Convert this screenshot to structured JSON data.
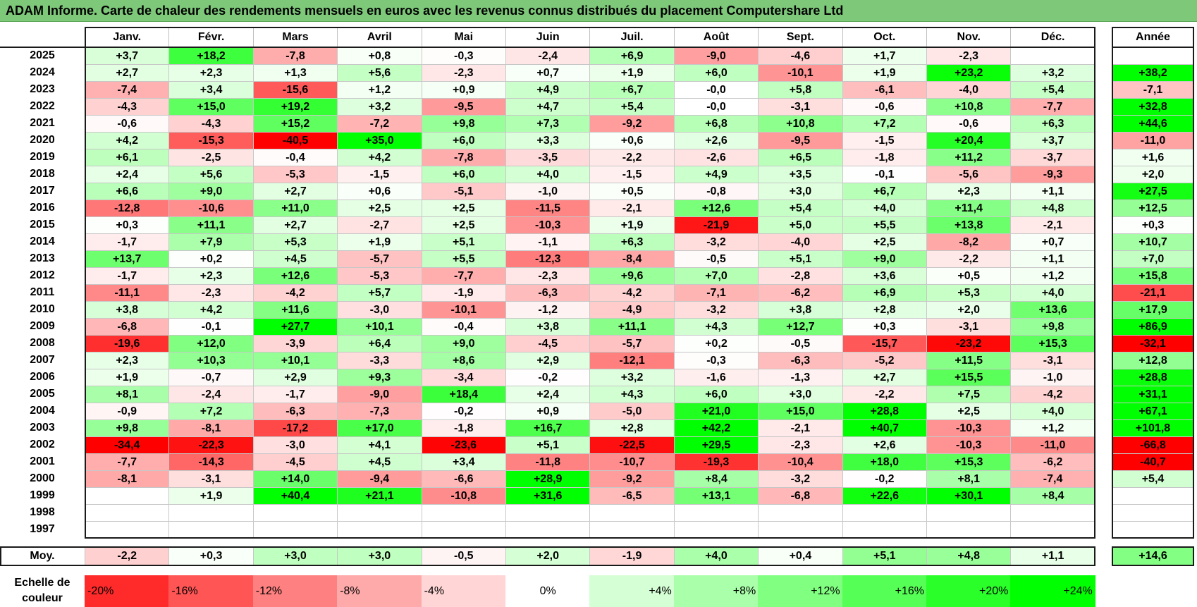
{
  "title": "ADAM Informe. Carte de chaleur des rendements mensuels en euros avec les revenus connus distribués du placement Computershare Ltd",
  "chart_data": {
    "type": "heatmap",
    "months": [
      "Janv.",
      "Févr.",
      "Mars",
      "Avril",
      "Mai",
      "Juin",
      "Juil.",
      "Août",
      "Sept.",
      "Oct.",
      "Nov.",
      "Déc."
    ],
    "year_header": "Année",
    "rows": [
      {
        "year": "2025",
        "values": [
          "+3,7",
          "+18,2",
          "-7,8",
          "+0,8",
          "-0,3",
          "-2,4",
          "+6,9",
          "-9,0",
          "-4,6",
          "+1,7",
          "-2,3",
          ""
        ],
        "annual": ""
      },
      {
        "year": "2024",
        "values": [
          "+2,7",
          "+2,3",
          "+1,3",
          "+5,6",
          "-2,3",
          "+0,7",
          "+1,9",
          "+6,0",
          "-10,1",
          "+1,9",
          "+23,2",
          "+3,2"
        ],
        "annual": "+38,2"
      },
      {
        "year": "2023",
        "values": [
          "-7,4",
          "+3,4",
          "-15,6",
          "+1,2",
          "+0,9",
          "+4,9",
          "+6,7",
          "-0,0",
          "+5,8",
          "-6,1",
          "-4,0",
          "+5,4"
        ],
        "annual": "-7,1"
      },
      {
        "year": "2022",
        "values": [
          "-4,3",
          "+15,0",
          "+19,2",
          "+3,2",
          "-9,5",
          "+4,7",
          "+5,4",
          "-0,0",
          "-3,1",
          "-0,6",
          "+10,8",
          "-7,7"
        ],
        "annual": "+32,8"
      },
      {
        "year": "2021",
        "values": [
          "-0,6",
          "-4,3",
          "+15,2",
          "-7,2",
          "+9,8",
          "+7,3",
          "-9,2",
          "+6,8",
          "+10,8",
          "+7,2",
          "-0,6",
          "+6,3"
        ],
        "annual": "+44,6"
      },
      {
        "year": "2020",
        "values": [
          "+4,2",
          "-15,3",
          "-40,5",
          "+35,0",
          "+6,0",
          "+3,3",
          "+0,6",
          "+2,6",
          "-9,5",
          "-1,5",
          "+20,4",
          "+3,7"
        ],
        "annual": "-11,0"
      },
      {
        "year": "2019",
        "values": [
          "+6,1",
          "-2,5",
          "-0,4",
          "+4,2",
          "-7,8",
          "-3,5",
          "-2,2",
          "-2,6",
          "+6,5",
          "-1,8",
          "+11,2",
          "-3,7"
        ],
        "annual": "+1,6"
      },
      {
        "year": "2018",
        "values": [
          "+2,4",
          "+5,6",
          "-5,3",
          "-1,5",
          "+6,0",
          "+4,0",
          "-1,5",
          "+4,9",
          "+3,5",
          "-0,1",
          "-5,6",
          "-9,3"
        ],
        "annual": "+2,0"
      },
      {
        "year": "2017",
        "values": [
          "+6,6",
          "+9,0",
          "+2,7",
          "+0,6",
          "-5,1",
          "-1,0",
          "+0,5",
          "-0,8",
          "+3,0",
          "+6,7",
          "+2,3",
          "+1,1"
        ],
        "annual": "+27,5"
      },
      {
        "year": "2016",
        "values": [
          "-12,8",
          "-10,6",
          "+11,0",
          "+2,5",
          "+2,5",
          "-11,5",
          "-2,1",
          "+12,6",
          "+5,4",
          "+4,0",
          "+11,4",
          "+4,8"
        ],
        "annual": "+12,5"
      },
      {
        "year": "2015",
        "values": [
          "+0,3",
          "+11,1",
          "+2,7",
          "-2,7",
          "+2,5",
          "-10,3",
          "+1,9",
          "-21,9",
          "+5,0",
          "+5,5",
          "+13,8",
          "-2,1"
        ],
        "annual": "+0,3"
      },
      {
        "year": "2014",
        "values": [
          "-1,7",
          "+7,9",
          "+5,3",
          "+1,9",
          "+5,1",
          "-1,1",
          "+6,3",
          "-3,2",
          "-4,0",
          "+2,5",
          "-8,2",
          "+0,7"
        ],
        "annual": "+10,7"
      },
      {
        "year": "2013",
        "values": [
          "+13,7",
          "+0,2",
          "+4,5",
          "-5,7",
          "+5,5",
          "-12,3",
          "-8,4",
          "-0,5",
          "+5,1",
          "+9,0",
          "-2,2",
          "+1,1"
        ],
        "annual": "+7,0"
      },
      {
        "year": "2012",
        "values": [
          "-1,7",
          "+2,3",
          "+12,6",
          "-5,3",
          "-7,7",
          "-2,3",
          "+9,6",
          "+7,0",
          "-2,8",
          "+3,6",
          "+0,5",
          "+1,2"
        ],
        "annual": "+15,8"
      },
      {
        "year": "2011",
        "values": [
          "-11,1",
          "-2,3",
          "-4,2",
          "+5,7",
          "-1,9",
          "-6,3",
          "-4,2",
          "-7,1",
          "-6,2",
          "+6,9",
          "+5,3",
          "+4,0"
        ],
        "annual": "-21,1"
      },
      {
        "year": "2010",
        "values": [
          "+3,8",
          "+4,2",
          "+11,6",
          "-3,0",
          "-10,1",
          "-1,2",
          "-4,9",
          "-3,2",
          "+3,8",
          "+2,8",
          "+2,0",
          "+13,6"
        ],
        "annual": "+17,9"
      },
      {
        "year": "2009",
        "values": [
          "-6,8",
          "-0,1",
          "+27,7",
          "+10,1",
          "-0,4",
          "+3,8",
          "+11,1",
          "+4,3",
          "+12,7",
          "+0,3",
          "-3,1",
          "+9,8"
        ],
        "annual": "+86,9"
      },
      {
        "year": "2008",
        "values": [
          "-19,6",
          "+12,0",
          "-3,9",
          "+6,4",
          "+9,0",
          "-4,5",
          "-5,7",
          "+0,2",
          "-0,5",
          "-15,7",
          "-23,2",
          "+15,3"
        ],
        "annual": "-32,1"
      },
      {
        "year": "2007",
        "values": [
          "+2,3",
          "+10,3",
          "+10,1",
          "-3,3",
          "+8,6",
          "+2,9",
          "-12,1",
          "-0,3",
          "-6,3",
          "-5,2",
          "+11,5",
          "-3,1"
        ],
        "annual": "+12,8"
      },
      {
        "year": "2006",
        "values": [
          "+1,9",
          "-0,7",
          "+2,9",
          "+9,3",
          "-3,4",
          "-0,2",
          "+3,2",
          "-1,6",
          "-1,3",
          "+2,7",
          "+15,5",
          "-1,0"
        ],
        "annual": "+28,8"
      },
      {
        "year": "2005",
        "values": [
          "+8,1",
          "-2,4",
          "-1,7",
          "-9,0",
          "+18,4",
          "+2,4",
          "+4,3",
          "+6,0",
          "+3,0",
          "-2,2",
          "+7,5",
          "-4,2"
        ],
        "annual": "+31,1"
      },
      {
        "year": "2004",
        "values": [
          "-0,9",
          "+7,2",
          "-6,3",
          "-7,3",
          "-0,2",
          "+0,9",
          "-5,0",
          "+21,0",
          "+15,0",
          "+28,8",
          "+2,5",
          "+4,0"
        ],
        "annual": "+67,1"
      },
      {
        "year": "2003",
        "values": [
          "+9,8",
          "-8,1",
          "-17,2",
          "+17,0",
          "-1,8",
          "+16,7",
          "+2,8",
          "+42,2",
          "-2,1",
          "+40,7",
          "-10,3",
          "+1,2"
        ],
        "annual": "+101,8"
      },
      {
        "year": "2002",
        "values": [
          "-34,4",
          "-22,3",
          "-3,0",
          "+4,1",
          "-23,6",
          "+5,1",
          "-22,5",
          "+29,5",
          "-2,3",
          "+2,6",
          "-10,3",
          "-11,0"
        ],
        "annual": "-66,8"
      },
      {
        "year": "2001",
        "values": [
          "-7,7",
          "-14,3",
          "-4,5",
          "+4,5",
          "+3,4",
          "-11,8",
          "-10,7",
          "-19,3",
          "-10,4",
          "+18,0",
          "+15,3",
          "-6,2"
        ],
        "annual": "-40,7"
      },
      {
        "year": "2000",
        "values": [
          "-8,1",
          "-3,1",
          "+14,0",
          "-9,4",
          "-6,6",
          "+28,9",
          "-9,2",
          "+8,4",
          "-3,2",
          "-0,2",
          "+8,1",
          "-7,4"
        ],
        "annual": "+5,4"
      },
      {
        "year": "1999",
        "values": [
          "",
          "+1,9",
          "+40,4",
          "+21,1",
          "-10,8",
          "+31,6",
          "-6,5",
          "+13,1",
          "-6,8",
          "+22,6",
          "+30,1",
          "+8,4"
        ],
        "annual": ""
      },
      {
        "year": "1998",
        "values": [
          "",
          "",
          "",
          "",
          "",
          "",
          "",
          "",
          "",
          "",
          "",
          ""
        ],
        "annual": ""
      },
      {
        "year": "1997",
        "values": [
          "",
          "",
          "",
          "",
          "",
          "",
          "",
          "",
          "",
          "",
          "",
          ""
        ],
        "annual": ""
      }
    ],
    "average": {
      "label": "Moy.",
      "values": [
        "-2,2",
        "+0,3",
        "+3,0",
        "+3,0",
        "-0,5",
        "+2,0",
        "-1,9",
        "+4,0",
        "+0,4",
        "+5,1",
        "+4,8",
        "+1,1"
      ],
      "annual": "+14,6"
    },
    "scale": {
      "label": "Echelle de couleur",
      "steps": [
        "-20%",
        "-16%",
        "-12%",
        "-8%",
        "-4%",
        "0%",
        "+4%",
        "+8%",
        "+12%",
        "+16%",
        "+20%",
        "+24%"
      ]
    },
    "colors": {
      "negative_max": "#ff0000",
      "neutral": "#ffffff",
      "positive_max": "#00ff00"
    }
  }
}
